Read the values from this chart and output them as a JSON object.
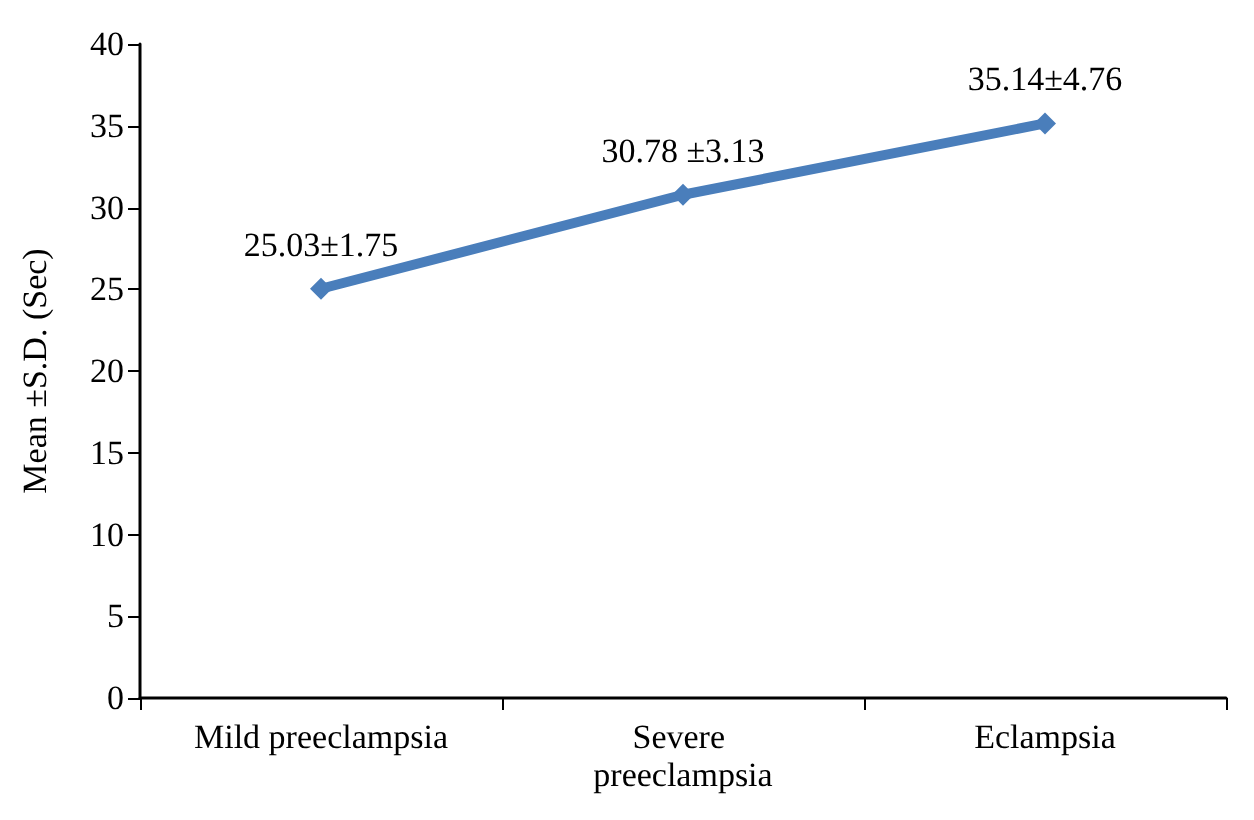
{
  "chart_data": {
    "type": "line",
    "ylabel": "Mean ±S.D. (Sec)",
    "categories": [
      "Mild preeclampsia",
      "Severe preeclampsia",
      "Eclampsia"
    ],
    "series": [
      {
        "color": "#4a7ebb",
        "values": [
          25.03,
          30.78,
          35.14
        ],
        "value_labels": [
          "25.03±1.75",
          "30.78 ±3.13",
          "35.14±4.76"
        ]
      }
    ],
    "ylim": [
      0,
      40
    ],
    "yticks": [
      0,
      5,
      10,
      15,
      20,
      25,
      30,
      35,
      40
    ],
    "grid": false,
    "marker": "diamond",
    "line_style": "solid"
  }
}
